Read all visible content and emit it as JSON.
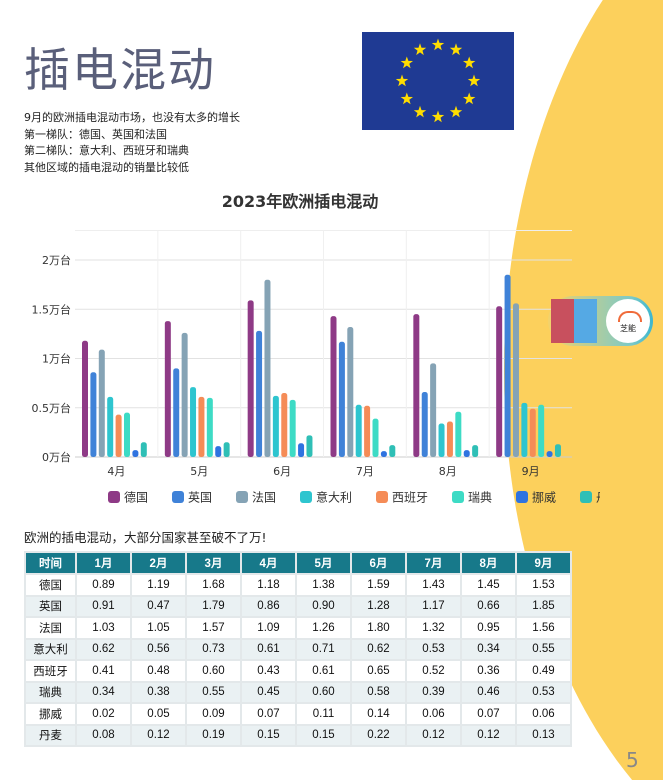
{
  "title": "插电混动",
  "description": [
    "9月的欧洲插电混动市场，也没有太多的增长",
    "第一梯队：德国、英国和法国",
    "第二梯队：意大利、西班牙和瑞典",
    "其他区域的插电混动的销量比较低"
  ],
  "table_note": "欧洲的插电混动，大部分国家甚至破不了万!",
  "badge_logo_text": "芝能",
  "page_number": "5",
  "colors": {
    "accent_yellow": "#fcd05c",
    "table_header": "#17798a",
    "flag_blue": "#1f3a93",
    "flag_star": "#ffdd00"
  },
  "chart_data": {
    "type": "bar",
    "title": "2023年欧洲插电混动",
    "xlabel": "",
    "ylabel": "",
    "categories": [
      "4月",
      "5月",
      "6月",
      "7月",
      "8月",
      "9月"
    ],
    "y_ticks": [
      "0万台",
      "0.5万台",
      "1万台",
      "1.5万台",
      "2万台"
    ],
    "ylim": [
      0,
      2.3
    ],
    "grid": true,
    "legend_position": "bottom",
    "series": [
      {
        "name": "德国",
        "color": "#8e3a86",
        "values": [
          1.18,
          1.38,
          1.59,
          1.43,
          1.45,
          1.53
        ]
      },
      {
        "name": "英国",
        "color": "#3f82d8",
        "values": [
          0.86,
          0.9,
          1.28,
          1.17,
          0.66,
          1.85
        ]
      },
      {
        "name": "法国",
        "color": "#85a3b5",
        "values": [
          1.09,
          1.26,
          1.8,
          1.32,
          0.95,
          1.56
        ]
      },
      {
        "name": "意大利",
        "color": "#2ec5cf",
        "values": [
          0.61,
          0.71,
          0.62,
          0.53,
          0.34,
          0.55
        ]
      },
      {
        "name": "西班牙",
        "color": "#f58c57",
        "values": [
          0.43,
          0.61,
          0.65,
          0.52,
          0.36,
          0.49
        ]
      },
      {
        "name": "瑞典",
        "color": "#3ddbc5",
        "values": [
          0.45,
          0.6,
          0.58,
          0.39,
          0.46,
          0.53
        ]
      },
      {
        "name": "挪威",
        "color": "#2f73e0",
        "values": [
          0.07,
          0.11,
          0.14,
          0.06,
          0.07,
          0.06
        ]
      },
      {
        "name": "丹麦",
        "color": "#2fbfb6",
        "values": [
          0.15,
          0.15,
          0.22,
          0.12,
          0.12,
          0.13
        ]
      }
    ]
  },
  "table": {
    "headers": [
      "时间",
      "1月",
      "2月",
      "3月",
      "4月",
      "5月",
      "6月",
      "7月",
      "8月",
      "9月"
    ],
    "rows": [
      [
        "德国",
        "0.89",
        "1.19",
        "1.68",
        "1.18",
        "1.38",
        "1.59",
        "1.43",
        "1.45",
        "1.53"
      ],
      [
        "英国",
        "0.91",
        "0.47",
        "1.79",
        "0.86",
        "0.90",
        "1.28",
        "1.17",
        "0.66",
        "1.85"
      ],
      [
        "法国",
        "1.03",
        "1.05",
        "1.57",
        "1.09",
        "1.26",
        "1.80",
        "1.32",
        "0.95",
        "1.56"
      ],
      [
        "意大利",
        "0.62",
        "0.56",
        "0.73",
        "0.61",
        "0.71",
        "0.62",
        "0.53",
        "0.34",
        "0.55"
      ],
      [
        "西班牙",
        "0.41",
        "0.48",
        "0.60",
        "0.43",
        "0.61",
        "0.65",
        "0.52",
        "0.36",
        "0.49"
      ],
      [
        "瑞典",
        "0.34",
        "0.38",
        "0.55",
        "0.45",
        "0.60",
        "0.58",
        "0.39",
        "0.46",
        "0.53"
      ],
      [
        "挪威",
        "0.02",
        "0.05",
        "0.09",
        "0.07",
        "0.11",
        "0.14",
        "0.06",
        "0.07",
        "0.06"
      ],
      [
        "丹麦",
        "0.08",
        "0.12",
        "0.19",
        "0.15",
        "0.15",
        "0.22",
        "0.12",
        "0.12",
        "0.13"
      ]
    ]
  }
}
